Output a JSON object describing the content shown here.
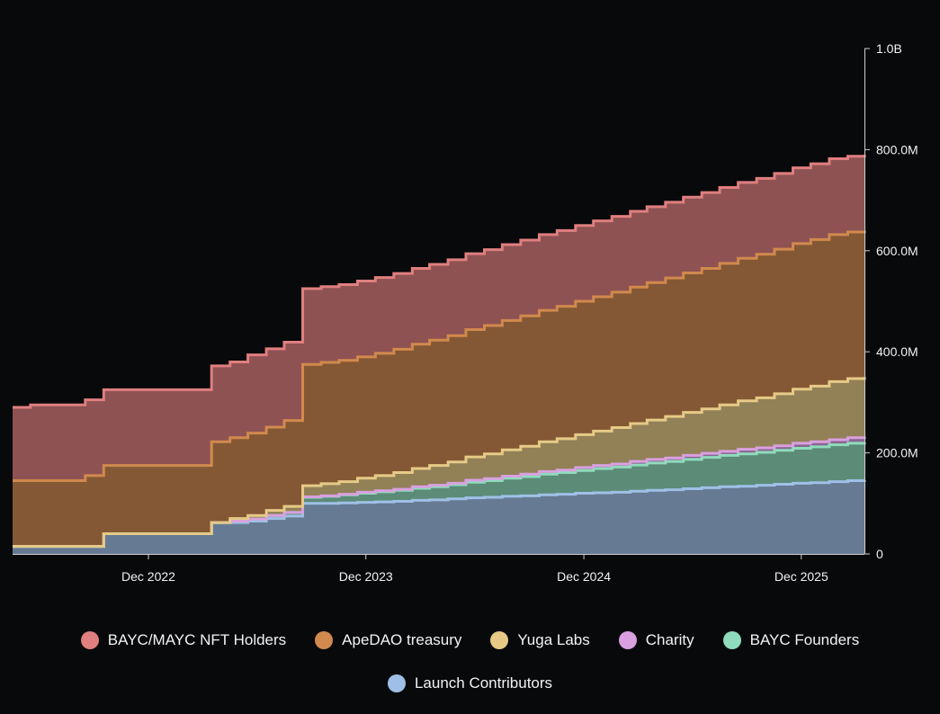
{
  "chart_data": {
    "type": "area",
    "stacked": true,
    "x_axis": {
      "min": "2022-04-17",
      "max": "2026-03-17",
      "ticks": [
        {
          "date": "2022-12-01",
          "label": "Dec 2022"
        },
        {
          "date": "2023-12-01",
          "label": "Dec 2023"
        },
        {
          "date": "2024-12-01",
          "label": "Dec 2024"
        },
        {
          "date": "2025-12-01",
          "label": "Dec 2025"
        }
      ]
    },
    "y_axis": {
      "position": "right",
      "min": 0,
      "max": 1000000000,
      "ticks": [
        {
          "value": 0,
          "label": "0"
        },
        {
          "value": 200000000,
          "label": "200.0M"
        },
        {
          "value": 400000000,
          "label": "400.0M"
        },
        {
          "value": 600000000,
          "label": "600.0M"
        },
        {
          "value": 800000000,
          "label": "800.0M"
        },
        {
          "value": 1000000000,
          "label": "1.0B"
        }
      ]
    },
    "grid": false,
    "legend_position": "bottom",
    "x": [
      "2022-04-17",
      "2022-05-17",
      "2022-06-17",
      "2022-07-17",
      "2022-08-17",
      "2022-09-17",
      "2022-10-17",
      "2022-11-17",
      "2022-12-17",
      "2023-01-17",
      "2023-02-17",
      "2023-03-17",
      "2023-04-17",
      "2023-05-17",
      "2023-06-17",
      "2023-07-17",
      "2023-08-17",
      "2023-09-17",
      "2023-10-17",
      "2023-11-17",
      "2023-12-17",
      "2024-01-17",
      "2024-02-17",
      "2024-03-17",
      "2024-04-17",
      "2024-05-17",
      "2024-06-17",
      "2024-07-17",
      "2024-08-17",
      "2024-09-17",
      "2024-10-17",
      "2024-11-17",
      "2024-12-17",
      "2025-01-17",
      "2025-02-17",
      "2025-03-17",
      "2025-04-17",
      "2025-05-17",
      "2025-06-17",
      "2025-07-17",
      "2025-08-17",
      "2025-09-17",
      "2025-10-17",
      "2025-11-17",
      "2025-12-17",
      "2026-01-17",
      "2026-02-17",
      "2026-03-17"
    ],
    "series": [
      {
        "name": "Launch Contributors",
        "color": "#9fc0e6",
        "values": [
          15,
          15,
          15,
          15,
          15,
          40,
          40,
          40,
          40,
          40,
          40,
          62,
          62,
          65,
          70,
          75,
          100,
          100,
          101,
          102,
          103,
          104,
          106,
          107,
          109,
          111,
          112,
          114,
          115,
          117,
          118,
          120,
          121,
          122,
          124,
          126,
          127,
          129,
          131,
          133,
          134,
          136,
          138,
          140,
          141,
          143,
          145,
          146
        ]
      },
      {
        "name": "BAYC Founders",
        "color": "#8fdcbc",
        "values": [
          0,
          0,
          0,
          0,
          0,
          0,
          0,
          0,
          0,
          0,
          0,
          0,
          3,
          4,
          6,
          7,
          12,
          14,
          16,
          18,
          20,
          22,
          24,
          26,
          28,
          31,
          33,
          36,
          38,
          41,
          43,
          45,
          48,
          50,
          52,
          54,
          56,
          58,
          60,
          62,
          64,
          65,
          67,
          69,
          71,
          73,
          74,
          75
        ]
      },
      {
        "name": "Charity",
        "color": "#d9a0e0",
        "values": [
          0,
          0,
          0,
          0,
          0,
          0,
          0,
          0,
          0,
          0,
          0,
          0,
          0,
          0,
          0,
          0,
          1,
          1,
          1,
          2,
          2,
          2,
          3,
          3,
          3,
          4,
          4,
          4,
          5,
          5,
          5,
          6,
          6,
          6,
          7,
          7,
          7,
          8,
          8,
          8,
          9,
          9,
          9,
          10,
          10,
          10,
          11,
          11
        ]
      },
      {
        "name": "Yuga Labs",
        "color": "#e6ca86",
        "values": [
          0,
          0,
          0,
          0,
          0,
          0,
          0,
          0,
          0,
          0,
          0,
          0,
          5,
          7,
          10,
          12,
          22,
          24,
          25,
          28,
          30,
          33,
          36,
          39,
          42,
          46,
          49,
          52,
          55,
          59,
          62,
          65,
          68,
          72,
          75,
          78,
          82,
          85,
          88,
          92,
          96,
          99,
          103,
          107,
          110,
          115,
          117,
          118
        ]
      },
      {
        "name": "ApeDAO treasury",
        "color": "#d1894d",
        "values": [
          130,
          130,
          130,
          130,
          140,
          135,
          135,
          135,
          135,
          135,
          135,
          160,
          160,
          163,
          165,
          170,
          240,
          240,
          240,
          240,
          242,
          244,
          246,
          248,
          250,
          252,
          254,
          256,
          258,
          260,
          262,
          264,
          266,
          268,
          270,
          272,
          274,
          276,
          278,
          280,
          282,
          284,
          286,
          288,
          290,
          291,
          290,
          290
        ]
      },
      {
        "name": "BAYC/MAYC NFT Holders",
        "color": "#e07f7f",
        "values": [
          145,
          150,
          150,
          150,
          150,
          150,
          150,
          150,
          150,
          150,
          150,
          150,
          150,
          155,
          155,
          155,
          150,
          150,
          150,
          150,
          150,
          150,
          150,
          150,
          150,
          150,
          150,
          150,
          150,
          150,
          150,
          150,
          150,
          150,
          150,
          150,
          150,
          150,
          150,
          150,
          150,
          150,
          150,
          150,
          150,
          150,
          150,
          150
        ]
      }
    ],
    "value_unit": "millions"
  },
  "legend": {
    "items": [
      {
        "label": "BAYC/MAYC NFT Holders",
        "color": "#e07f7f"
      },
      {
        "label": "ApeDAO treasury",
        "color": "#d1894d"
      },
      {
        "label": "Yuga Labs",
        "color": "#e6ca86"
      },
      {
        "label": "Charity",
        "color": "#d9a0e0"
      },
      {
        "label": "BAYC Founders",
        "color": "#8fdcbc"
      },
      {
        "label": "Launch Contributors",
        "color": "#9fc0e6"
      }
    ]
  }
}
